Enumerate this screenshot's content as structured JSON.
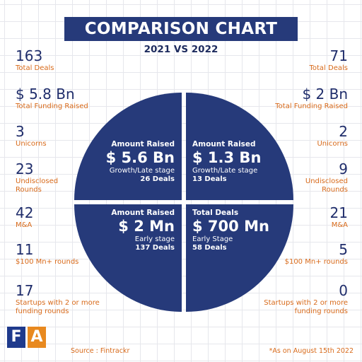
{
  "header": {
    "title": "COMPARISON CHART",
    "subtitle": "2021 VS 2022"
  },
  "left_stats": [
    {
      "value": "163",
      "label": "Total Deals"
    },
    {
      "value": "$ 5.8 Bn",
      "label": "Total Funding Raised"
    },
    {
      "value": "3",
      "label": "Unicorns"
    },
    {
      "value": "23",
      "label": "Undisclosed Rounds"
    },
    {
      "value": "42",
      "label": "M&A"
    },
    {
      "value": "11",
      "label": "$100 Mn+ rounds"
    },
    {
      "value": "17",
      "label": "Startups with 2 or more funding rounds"
    }
  ],
  "right_stats": [
    {
      "value": "71",
      "label": "Total Deals"
    },
    {
      "value": "$ 2 Bn",
      "label": "Total Funding Raised"
    },
    {
      "value": "2",
      "label": "Unicorns"
    },
    {
      "value": "9",
      "label": "Undisclosed Rounds"
    },
    {
      "value": "21",
      "label": "M&A"
    },
    {
      "value": "5",
      "label": "$100 Mn+ rounds"
    },
    {
      "value": "0",
      "label": "Startups with 2 or more funding rounds"
    }
  ],
  "quadrants": {
    "tl": {
      "top": "Amount Raised",
      "amount": "$ 5.6 Bn",
      "stage": "Growth/Late stage",
      "deals": "26 Deals"
    },
    "tr": {
      "top": "Amount Raised",
      "amount": "$ 1.3 Bn",
      "stage": "Growth/Late stage",
      "deals": "13 Deals"
    },
    "bl": {
      "top": "Amount Raised",
      "amount": "$ 2 Mn",
      "stage": "Early stage",
      "deals": "137 Deals"
    },
    "br": {
      "top": "Total Deals",
      "amount": "$ 700 Mn",
      "stage": "Early Stage",
      "deals": "58 Deals"
    }
  },
  "chart_data": {
    "type": "pie",
    "title": "COMPARISON CHART",
    "subtitle": "2021 VS 2022",
    "slices": [
      {
        "label": "Growth/Late stage",
        "value": 5.6,
        "unit": "Bn",
        "deals": 26
      },
      {
        "label": "Growth/Late stage",
        "value": 1.3,
        "unit": "Bn",
        "deals": 13
      },
      {
        "label": "Early Stage",
        "value": 700,
        "unit": "Mn",
        "deals": 58
      },
      {
        "label": "Early stage",
        "value": 2,
        "unit": "Mn",
        "deals": 137
      }
    ]
  },
  "colors": {
    "primary": "#263a7a",
    "accent": "#d86a1a",
    "number": "#1f2d6b"
  },
  "logo": {
    "letter_1": "F",
    "letter_2": "A"
  },
  "footer": {
    "source": "Source :  Fintrackr",
    "as_of": "*As on  August 15th 2022"
  }
}
